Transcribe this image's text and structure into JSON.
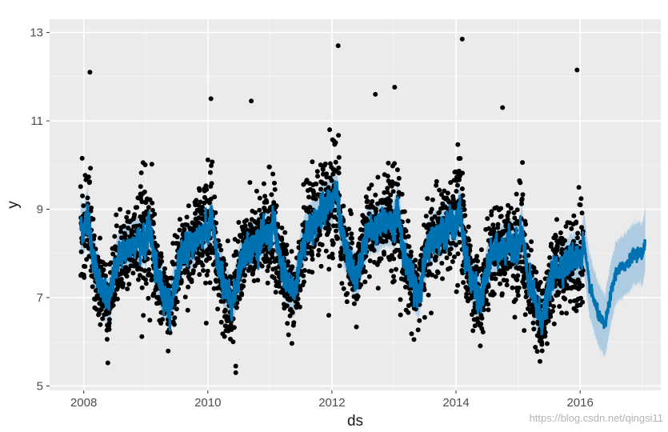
{
  "chart_data": {
    "type": "scatter",
    "xlabel": "ds",
    "ylabel": "y",
    "xlim": [
      2007.45,
      2017.3
    ],
    "ylim": [
      4.9,
      13.3
    ],
    "x_ticks": [
      {
        "value": 2008,
        "label": "2008"
      },
      {
        "value": 2010,
        "label": "2010"
      },
      {
        "value": 2012,
        "label": "2012"
      },
      {
        "value": 2014,
        "label": "2014"
      },
      {
        "value": 2016,
        "label": "2016"
      }
    ],
    "y_ticks": [
      {
        "value": 5,
        "label": "5"
      },
      {
        "value": 7,
        "label": "7"
      },
      {
        "value": 9,
        "label": "9"
      },
      {
        "value": 11,
        "label": "11"
      },
      {
        "value": 13,
        "label": "13"
      }
    ],
    "grid": true,
    "series": [
      {
        "role": "observed",
        "kind": "scatter",
        "color": "#000000",
        "x_range": [
          2007.95,
          2016.05
        ],
        "notable_points": [
          [
            2008.1,
            12.1
          ],
          [
            2012.1,
            12.7
          ],
          [
            2014.1,
            12.85
          ],
          [
            2015.95,
            12.15
          ],
          [
            2010.05,
            11.5
          ],
          [
            2012.7,
            11.6
          ],
          [
            2014.75,
            11.3
          ],
          [
            2010.7,
            11.45
          ],
          [
            2010.45,
            5.3
          ],
          [
            2010.45,
            5.45
          ],
          [
            2011.95,
            6.6
          ],
          [
            2013.6,
            6.65
          ]
        ]
      },
      {
        "role": "forecast",
        "kind": "line",
        "color": "#0072B2",
        "x_range": [
          2007.95,
          2017.05
        ]
      },
      {
        "role": "uncertainty",
        "kind": "band",
        "color": "#a6c8e0",
        "x_range": [
          2007.95,
          2017.05
        ]
      }
    ],
    "trend_knots": [
      [
        2007.95,
        8.05
      ],
      [
        2009.0,
        7.75
      ],
      [
        2010.0,
        7.95
      ],
      [
        2011.0,
        7.85
      ],
      [
        2012.0,
        8.65
      ],
      [
        2013.0,
        8.15
      ],
      [
        2014.0,
        8.15
      ],
      [
        2015.0,
        7.65
      ],
      [
        2016.0,
        7.35
      ],
      [
        2017.05,
        7.5
      ]
    ],
    "seasonal_knots": [
      [
        0.0,
        0.45
      ],
      [
        0.06,
        0.9
      ],
      [
        0.15,
        -0.1
      ],
      [
        0.3,
        -0.8
      ],
      [
        0.4,
        -1.05
      ],
      [
        0.5,
        -0.3
      ],
      [
        0.58,
        0.15
      ],
      [
        0.75,
        0.3
      ],
      [
        0.85,
        0.5
      ],
      [
        0.97,
        0.55
      ],
      [
        1.0,
        0.45
      ]
    ],
    "band_halfwidth": 0.55,
    "observed_noise_sd": 0.45,
    "watermark": "https://blog.csdn.net/qingsi11"
  }
}
